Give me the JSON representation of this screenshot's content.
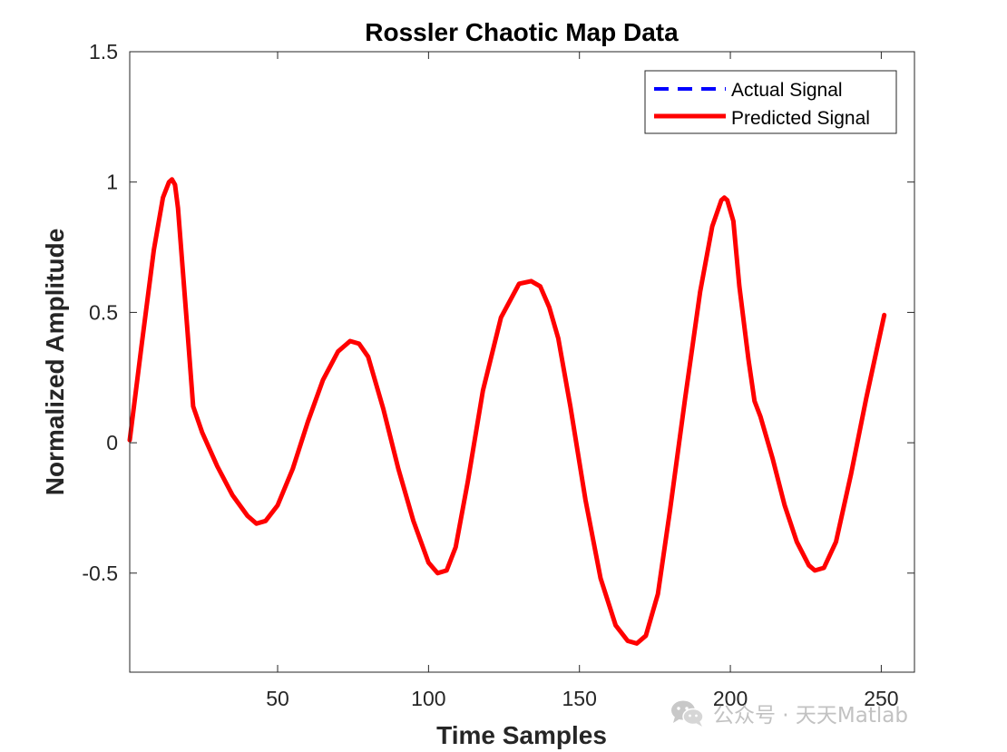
{
  "chart_data": {
    "type": "line",
    "title": "Rossler Chaotic Map Data",
    "xlabel": "Time Samples",
    "ylabel": "Normalized Amplitude",
    "xlim": [
      1,
      261
    ],
    "ylim": [
      -0.88,
      1.5
    ],
    "xticks": [
      50,
      100,
      150,
      200,
      250
    ],
    "xtick_labels": [
      "50",
      "100",
      "150",
      "200",
      "250"
    ],
    "yticks": [
      -0.5,
      0,
      0.5,
      1,
      1.5
    ],
    "ytick_labels": [
      "-0.5",
      "0",
      "0.5",
      "1",
      "1.5"
    ],
    "grid": false,
    "legend_position": "top-right",
    "series": [
      {
        "name": "Actual Signal",
        "color": "#0000ff",
        "style": "dashed",
        "x": [
          1,
          5,
          9,
          12,
          14,
          15,
          16,
          17,
          20,
          22,
          25,
          30,
          35,
          40,
          43,
          46,
          50,
          55,
          60,
          65,
          70,
          74,
          77,
          80,
          85,
          90,
          95,
          100,
          103,
          106,
          109,
          113,
          118,
          124,
          130,
          134,
          137,
          140,
          143,
          147,
          152,
          157,
          162,
          166,
          169,
          172,
          176,
          180,
          185,
          190,
          194,
          197,
          198,
          199,
          201,
          203,
          206,
          208,
          210,
          214,
          218,
          222,
          226,
          228,
          231,
          235,
          240,
          245,
          251
        ],
        "y": [
          0.01,
          0.38,
          0.74,
          0.94,
          1.0,
          1.01,
          0.99,
          0.9,
          0.45,
          0.14,
          0.04,
          -0.09,
          -0.2,
          -0.28,
          -0.31,
          -0.3,
          -0.24,
          -0.1,
          0.08,
          0.24,
          0.35,
          0.39,
          0.38,
          0.33,
          0.13,
          -0.1,
          -0.3,
          -0.46,
          -0.5,
          -0.49,
          -0.4,
          -0.15,
          0.2,
          0.48,
          0.61,
          0.62,
          0.6,
          0.52,
          0.4,
          0.14,
          -0.22,
          -0.52,
          -0.7,
          -0.76,
          -0.77,
          -0.74,
          -0.58,
          -0.26,
          0.17,
          0.58,
          0.83,
          0.93,
          0.94,
          0.93,
          0.85,
          0.6,
          0.32,
          0.16,
          0.1,
          -0.06,
          -0.24,
          -0.38,
          -0.47,
          -0.49,
          -0.48,
          -0.38,
          -0.12,
          0.17,
          0.49
        ]
      },
      {
        "name": "Predicted Signal",
        "color": "#ff0000",
        "style": "solid",
        "x": [
          1,
          5,
          9,
          12,
          14,
          15,
          16,
          17,
          20,
          22,
          25,
          30,
          35,
          40,
          43,
          46,
          50,
          55,
          60,
          65,
          70,
          74,
          77,
          80,
          85,
          90,
          95,
          100,
          103,
          106,
          109,
          113,
          118,
          124,
          130,
          134,
          137,
          140,
          143,
          147,
          152,
          157,
          162,
          166,
          169,
          172,
          176,
          180,
          185,
          190,
          194,
          197,
          198,
          199,
          201,
          203,
          206,
          208,
          210,
          214,
          218,
          222,
          226,
          228,
          231,
          235,
          240,
          245,
          251
        ],
        "y": [
          0.01,
          0.38,
          0.74,
          0.94,
          1.0,
          1.01,
          0.99,
          0.9,
          0.45,
          0.14,
          0.04,
          -0.09,
          -0.2,
          -0.28,
          -0.31,
          -0.3,
          -0.24,
          -0.1,
          0.08,
          0.24,
          0.35,
          0.39,
          0.38,
          0.33,
          0.13,
          -0.1,
          -0.3,
          -0.46,
          -0.5,
          -0.49,
          -0.4,
          -0.15,
          0.2,
          0.48,
          0.61,
          0.62,
          0.6,
          0.52,
          0.4,
          0.14,
          -0.22,
          -0.52,
          -0.7,
          -0.76,
          -0.77,
          -0.74,
          -0.58,
          -0.26,
          0.17,
          0.58,
          0.83,
          0.93,
          0.94,
          0.93,
          0.85,
          0.6,
          0.32,
          0.16,
          0.1,
          -0.06,
          -0.24,
          -0.38,
          -0.47,
          -0.49,
          -0.48,
          -0.38,
          -0.12,
          0.17,
          0.49
        ]
      }
    ]
  },
  "watermark": {
    "text": "公众号 · 天天Matlab",
    "icon": "wechat-icon"
  }
}
